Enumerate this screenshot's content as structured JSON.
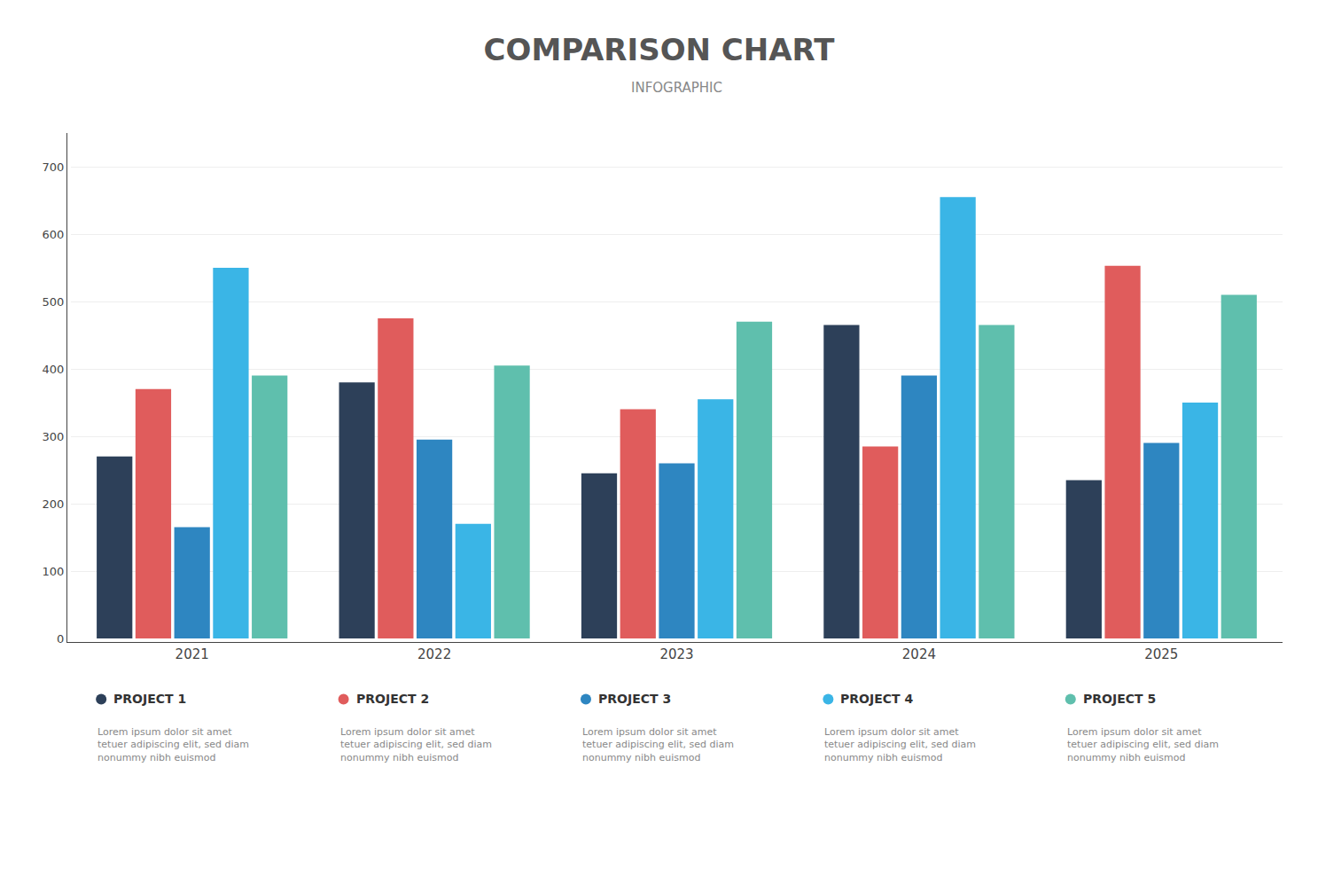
{
  "chart_data": {
    "type": "bar",
    "title": "COMPARISON CHART",
    "subtitle": "INFOGRAPHIC",
    "categories": [
      "2021",
      "2022",
      "2023",
      "2024",
      "2025"
    ],
    "series": [
      {
        "name": "PROJECT 1",
        "color": "#2d4059",
        "values": [
          270,
          380,
          245,
          465,
          235
        ]
      },
      {
        "name": "PROJECT 2",
        "color": "#e05c5c",
        "values": [
          370,
          475,
          340,
          285,
          553
        ]
      },
      {
        "name": "PROJECT 3",
        "color": "#2e86c1",
        "values": [
          165,
          295,
          260,
          390,
          290
        ]
      },
      {
        "name": "PROJECT 4",
        "color": "#3ab5e6",
        "values": [
          550,
          170,
          355,
          655,
          350
        ]
      },
      {
        "name": "PROJECT 5",
        "color": "#5fbfad",
        "values": [
          390,
          405,
          470,
          465,
          510
        ]
      }
    ],
    "annotations": [
      "Lorem ipsum dolor sit amet\ntetuer adipiscing elit, sed diam\nnonummy nibh euismod",
      "Lorem ipsum dolor sit amet\ntetuer adipiscing elit, sed diam\nnonummy nibh euismod",
      "Lorem ipsum dolor sit amet\ntetuer adipiscing elit, sed diam\nnonummy nibh euismod",
      "Lorem ipsum dolor sit amet\ntetuer adipiscing elit, sed diam\nnonummy nibh euismod",
      "Lorem ipsum dolor sit amet\ntetuer adipiscing elit, sed diam\nnonummy nibh euismod"
    ],
    "ylim": [
      0,
      750
    ],
    "yticks": [
      0,
      100,
      200,
      300,
      400,
      500,
      600,
      700
    ],
    "grid": true
  }
}
